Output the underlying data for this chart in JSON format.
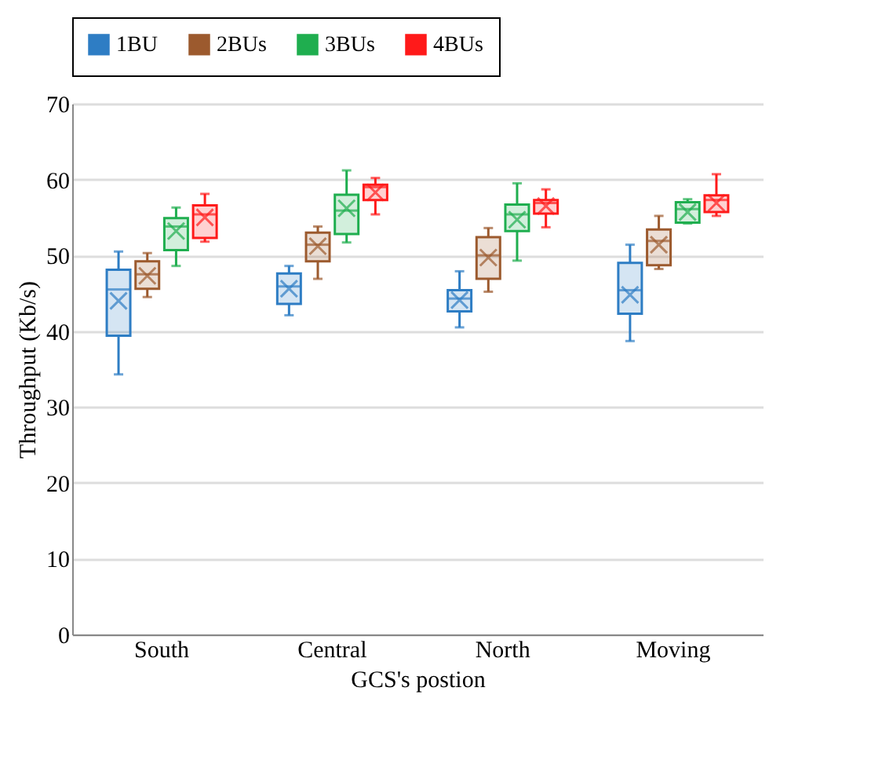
{
  "chart_data": {
    "type": "box",
    "xlabel": "GCS's postion",
    "ylabel": "Throughput (Kb/s)",
    "categories": [
      "South",
      "Central",
      "North",
      "Moving"
    ],
    "ylim": [
      0,
      70
    ],
    "yticks": [
      0,
      10,
      20,
      30,
      40,
      50,
      60,
      70
    ],
    "grid": "y",
    "legend": "top",
    "series": [
      {
        "name": "1BU",
        "color": "#2e7dc4",
        "boxes": [
          {
            "low": 34.3,
            "q1": 39.4,
            "median": 45.5,
            "q3": 48.1,
            "high": 50.5,
            "mean": 44.0
          },
          {
            "low": 42.1,
            "q1": 43.6,
            "median": 45.9,
            "q3": 47.6,
            "high": 48.6,
            "mean": 45.6
          },
          {
            "low": 40.5,
            "q1": 42.6,
            "median": 44.3,
            "q3": 45.4,
            "high": 47.9,
            "mean": 44.1
          },
          {
            "low": 38.7,
            "q1": 42.3,
            "median": 45.4,
            "q3": 49.0,
            "high": 51.4,
            "mean": 44.8
          }
        ]
      },
      {
        "name": "2BUs",
        "color": "#9c5a2e",
        "boxes": [
          {
            "low": 44.5,
            "q1": 45.6,
            "median": 47.5,
            "q3": 49.2,
            "high": 50.3,
            "mean": 47.3
          },
          {
            "low": 46.9,
            "q1": 49.2,
            "median": 51.4,
            "q3": 53.0,
            "high": 53.8,
            "mean": 51.2
          },
          {
            "low": 45.2,
            "q1": 46.9,
            "median": 50.0,
            "q3": 52.4,
            "high": 53.6,
            "mean": 49.7
          },
          {
            "low": 48.2,
            "q1": 48.7,
            "median": 51.9,
            "q3": 53.4,
            "high": 55.2,
            "mean": 51.4
          }
        ]
      },
      {
        "name": "3BUs",
        "color": "#1fae4f",
        "boxes": [
          {
            "low": 48.6,
            "q1": 50.7,
            "median": 53.8,
            "q3": 54.9,
            "high": 56.3,
            "mean": 53.2
          },
          {
            "low": 51.7,
            "q1": 52.8,
            "median": 55.9,
            "q3": 58.0,
            "high": 61.2,
            "mean": 56.2
          },
          {
            "low": 49.3,
            "q1": 53.2,
            "median": 55.4,
            "q3": 56.7,
            "high": 59.5,
            "mean": 54.7
          },
          {
            "low": 54.2,
            "q1": 54.3,
            "median": 56.1,
            "q3": 57.0,
            "high": 57.4,
            "mean": 55.7
          }
        ]
      },
      {
        "name": "4BUs",
        "color": "#ff1a1a",
        "boxes": [
          {
            "low": 51.8,
            "q1": 52.3,
            "median": 55.4,
            "q3": 56.6,
            "high": 58.1,
            "mean": 55.0
          },
          {
            "low": 55.4,
            "q1": 57.3,
            "median": 59.0,
            "q3": 59.3,
            "high": 60.2,
            "mean": 58.3
          },
          {
            "low": 53.7,
            "q1": 55.5,
            "median": 56.9,
            "q3": 57.3,
            "high": 58.7,
            "mean": 56.5
          },
          {
            "low": 55.2,
            "q1": 55.7,
            "median": 57.3,
            "q3": 57.9,
            "high": 60.7,
            "mean": 56.9
          }
        ]
      }
    ]
  }
}
